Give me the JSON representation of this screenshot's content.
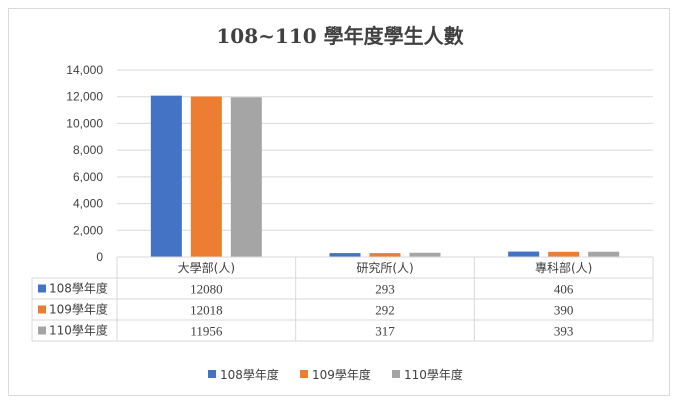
{
  "chart_data": {
    "type": "bar",
    "title": "108~110 學年度學生人數",
    "categories": [
      "大學部(人)",
      "研究所(人)",
      "專科部(人)"
    ],
    "series": [
      {
        "name": "108學年度",
        "color": "#4472C4",
        "values": [
          12080,
          293,
          406
        ]
      },
      {
        "name": "109學年度",
        "color": "#ED7D31",
        "values": [
          12018,
          292,
          390
        ]
      },
      {
        "name": "110學年度",
        "color": "#A5A5A5",
        "values": [
          11956,
          317,
          393
        ]
      }
    ],
    "ylim": [
      0,
      14000
    ],
    "yticks": [
      "0",
      "2,000",
      "4,000",
      "6,000",
      "8,000",
      "10,000",
      "12,000",
      "14,000"
    ],
    "grid": true,
    "legend": "bottom",
    "data_table": true
  }
}
